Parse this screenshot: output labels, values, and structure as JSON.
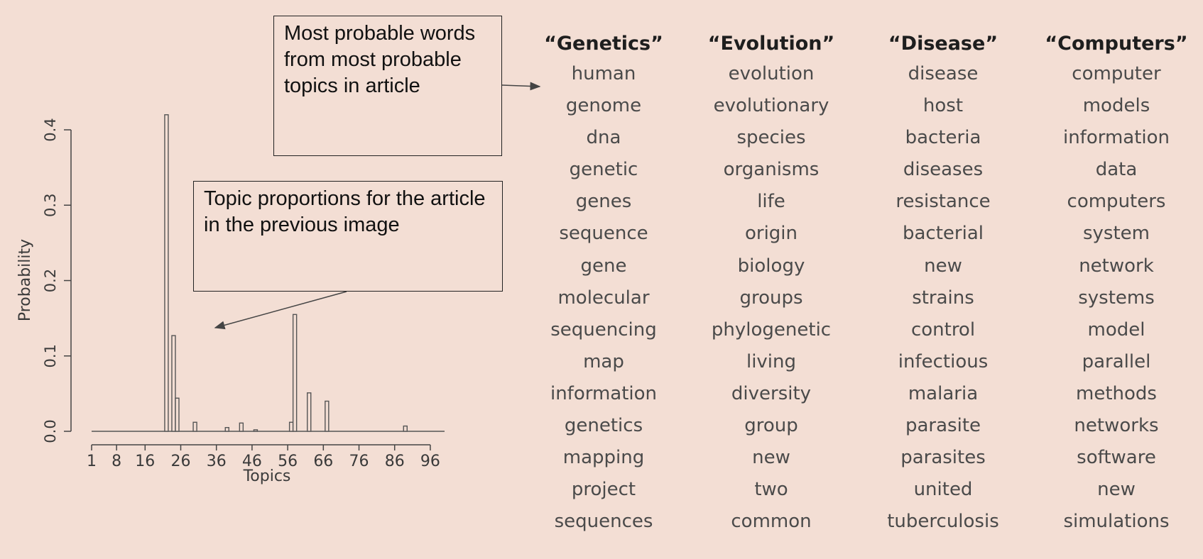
{
  "chart_data": {
    "type": "bar",
    "xlabel": "Topics",
    "ylabel": "Probability",
    "x_tick_labels": [
      "1",
      "8",
      "16",
      "26",
      "36",
      "46",
      "56",
      "66",
      "76",
      "86",
      "96"
    ],
    "y_tick_labels": [
      "0.0",
      "0.1",
      "0.2",
      "0.3",
      "0.4"
    ],
    "xlim": [
      1,
      100
    ],
    "ylim": [
      0,
      0.42
    ],
    "x": [
      22,
      24,
      25,
      30,
      39,
      43,
      47,
      57,
      58,
      62,
      67,
      89
    ],
    "values": [
      0.42,
      0.127,
      0.044,
      0.012,
      0.005,
      0.011,
      0.002,
      0.012,
      0.155,
      0.051,
      0.04,
      0.007
    ],
    "grid": false
  },
  "annotations": {
    "words_callout": "Most probable words from most probable topics in article",
    "topics_callout": "Topic proportions for the article in the previous image"
  },
  "topic_columns": [
    {
      "header": "“Genetics”",
      "words": [
        "human",
        "genome",
        "dna",
        "genetic",
        "genes",
        "sequence",
        "gene",
        "molecular",
        "sequencing",
        "map",
        "information",
        "genetics",
        "mapping",
        "project",
        "sequences"
      ]
    },
    {
      "header": "“Evolution”",
      "words": [
        "evolution",
        "evolutionary",
        "species",
        "organisms",
        "life",
        "origin",
        "biology",
        "groups",
        "phylogenetic",
        "living",
        "diversity",
        "group",
        "new",
        "two",
        "common"
      ]
    },
    {
      "header": "“Disease”",
      "words": [
        "disease",
        "host",
        "bacteria",
        "diseases",
        "resistance",
        "bacterial",
        "new",
        "strains",
        "control",
        "infectious",
        "malaria",
        "parasite",
        "parasites",
        "united",
        "tuberculosis"
      ]
    },
    {
      "header": "“Computers”",
      "words": [
        "computer",
        "models",
        "information",
        "data",
        "computers",
        "system",
        "network",
        "systems",
        "model",
        "parallel",
        "methods",
        "networks",
        "software",
        "new",
        "simulations"
      ]
    }
  ],
  "colors": {
    "background": "#f3ded4",
    "axis": "#444444",
    "bar_stroke": "#555555"
  }
}
